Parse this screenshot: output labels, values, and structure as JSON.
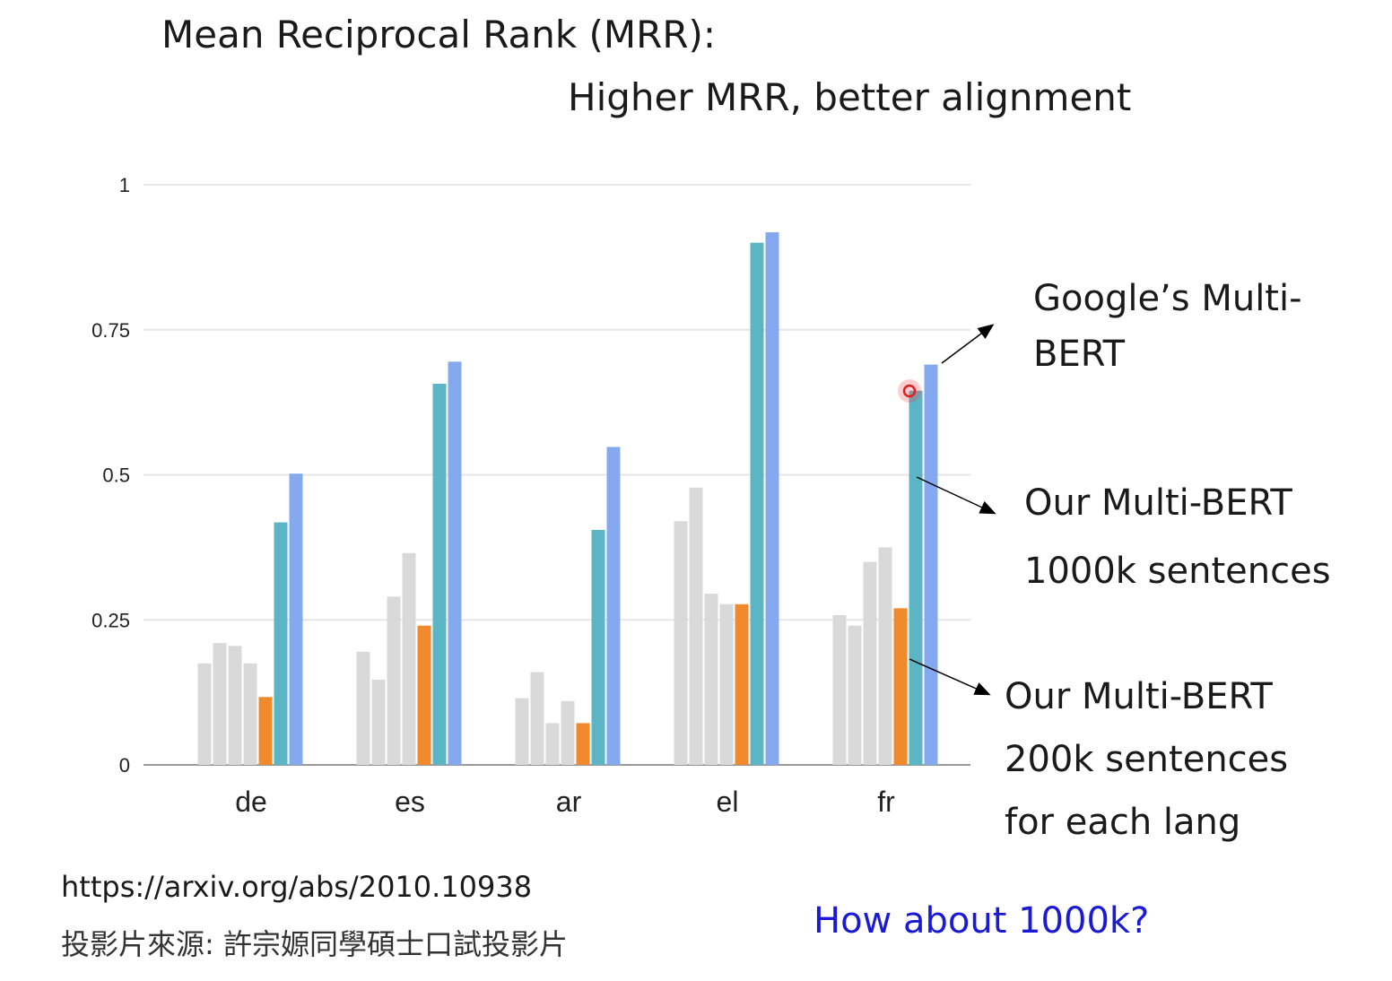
{
  "title": "Mean Reciprocal Rank (MRR):",
  "subtitle": "Higher MRR, better alignment",
  "annotations": {
    "google": [
      "Google’s Multi-",
      "BERT"
    ],
    "ours_1000k": [
      "Our Multi-BERT",
      "1000k sentences"
    ],
    "ours_200k": [
      "Our Multi-BERT",
      "200k sentences",
      "for each lang"
    ]
  },
  "footer": {
    "url": "https://arxiv.org/abs/2010.10938",
    "credit": "投影片來源: 許宗嫄同學碩士口試投影片",
    "question": "How about 1000k?"
  },
  "colors": {
    "baseline": "#d9d9d9",
    "ours_200k": "#f08a2c",
    "ours_1000k": "#5bb5c5",
    "google": "#85a9ef",
    "gridline": "#e6e6e6",
    "axis": "#9a9a9a",
    "cursor": "#e02020"
  },
  "chart_data": {
    "type": "bar",
    "categories": [
      "de",
      "es",
      "ar",
      "el",
      "fr"
    ],
    "ylim": [
      0,
      1
    ],
    "yticks": [
      0,
      0.25,
      0.5,
      0.75,
      1
    ],
    "ytick_labels": [
      "0",
      "0.25",
      "0.5",
      "0.75",
      "1"
    ],
    "grid": true,
    "series": [
      {
        "color_key": "baseline",
        "values": [
          0.175,
          0.195,
          0.115,
          0.42,
          0.258
        ]
      },
      {
        "color_key": "baseline",
        "values": [
          0.21,
          0.147,
          0.16,
          0.478,
          0.24
        ]
      },
      {
        "color_key": "baseline",
        "values": [
          0.205,
          0.29,
          0.072,
          0.295,
          0.35
        ]
      },
      {
        "color_key": "baseline",
        "values": [
          0.175,
          0.365,
          0.11,
          0.277,
          0.375
        ]
      },
      {
        "name": "Our Multi-BERT 200k sentences for each lang",
        "color_key": "ours_200k",
        "values": [
          0.117,
          0.24,
          0.072,
          0.277,
          0.27
        ]
      },
      {
        "name": "Our Multi-BERT 1000k sentences",
        "color_key": "ours_1000k",
        "values": [
          0.418,
          0.657,
          0.405,
          0.9,
          0.645
        ]
      },
      {
        "name": "Google’s Multi-BERT",
        "color_key": "google",
        "values": [
          0.502,
          0.695,
          0.548,
          0.918,
          0.69
        ]
      }
    ]
  }
}
